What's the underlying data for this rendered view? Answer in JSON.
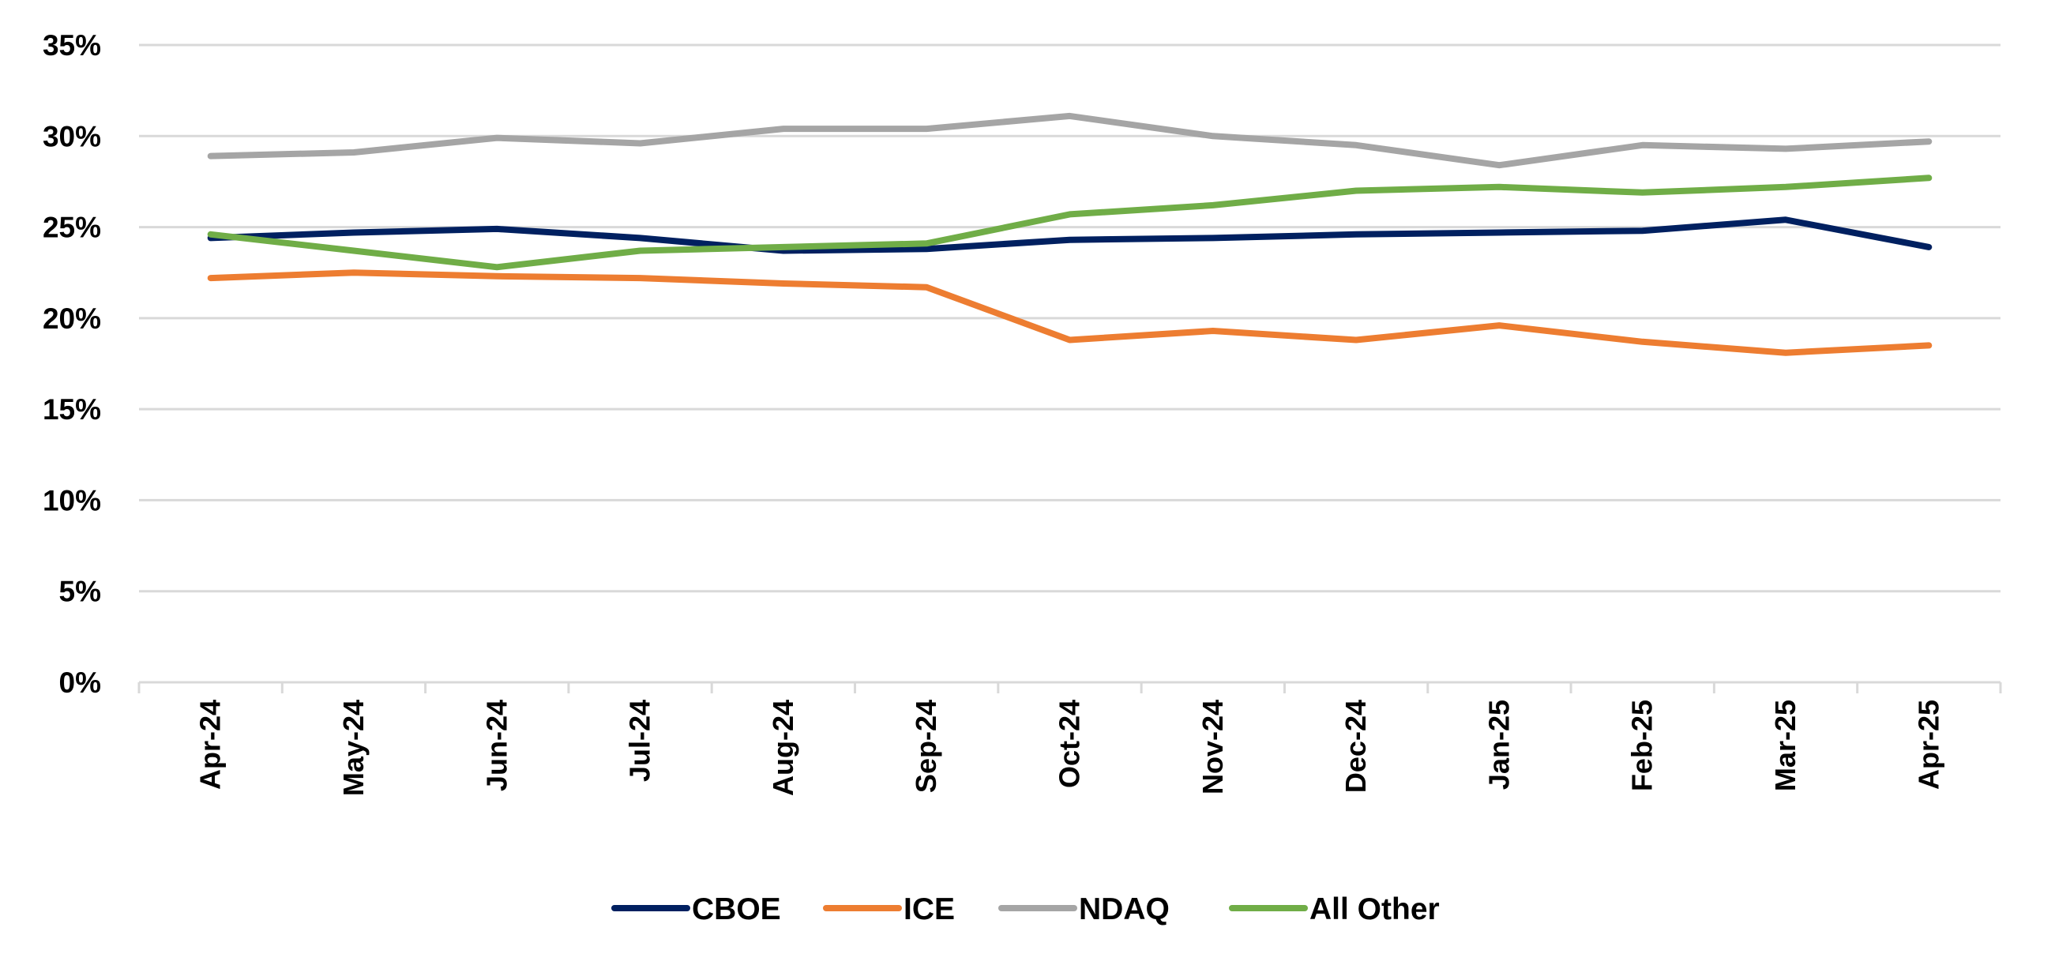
{
  "chart_data": {
    "type": "line",
    "title": "",
    "xlabel": "",
    "ylabel": "",
    "ylim": [
      0,
      35
    ],
    "yticks": [
      0,
      5,
      10,
      15,
      20,
      25,
      30,
      35
    ],
    "ytick_labels": [
      "0%",
      "5%",
      "10%",
      "15%",
      "20%",
      "25%",
      "30%",
      "35%"
    ],
    "grid": "horizontal",
    "legend_position": "bottom",
    "categories": [
      "Apr-24",
      "May-24",
      "Jun-24",
      "Jul-24",
      "Aug-24",
      "Sep-24",
      "Oct-24",
      "Nov-24",
      "Dec-24",
      "Jan-25",
      "Feb-25",
      "Mar-25",
      "Apr-25"
    ],
    "series": [
      {
        "name": "CBOE",
        "color": "#002060",
        "values": [
          24.4,
          24.7,
          24.9,
          24.4,
          23.7,
          23.8,
          24.3,
          24.4,
          24.6,
          24.7,
          24.8,
          25.4,
          23.9
        ]
      },
      {
        "name": "ICE",
        "color": "#ED7D31",
        "values": [
          22.2,
          22.5,
          22.3,
          22.2,
          21.9,
          21.7,
          18.8,
          19.3,
          18.8,
          19.6,
          18.7,
          18.1,
          18.5
        ]
      },
      {
        "name": "NDAQ",
        "color": "#A5A5A5",
        "values": [
          28.9,
          29.1,
          29.9,
          29.6,
          30.4,
          30.4,
          31.1,
          30.0,
          29.5,
          28.4,
          29.5,
          29.3,
          29.7
        ]
      },
      {
        "name": "All Other",
        "color": "#70AD47",
        "values": [
          24.6,
          23.7,
          22.8,
          23.7,
          23.9,
          24.1,
          25.7,
          26.2,
          27.0,
          27.2,
          26.9,
          27.2,
          27.7
        ]
      }
    ]
  }
}
